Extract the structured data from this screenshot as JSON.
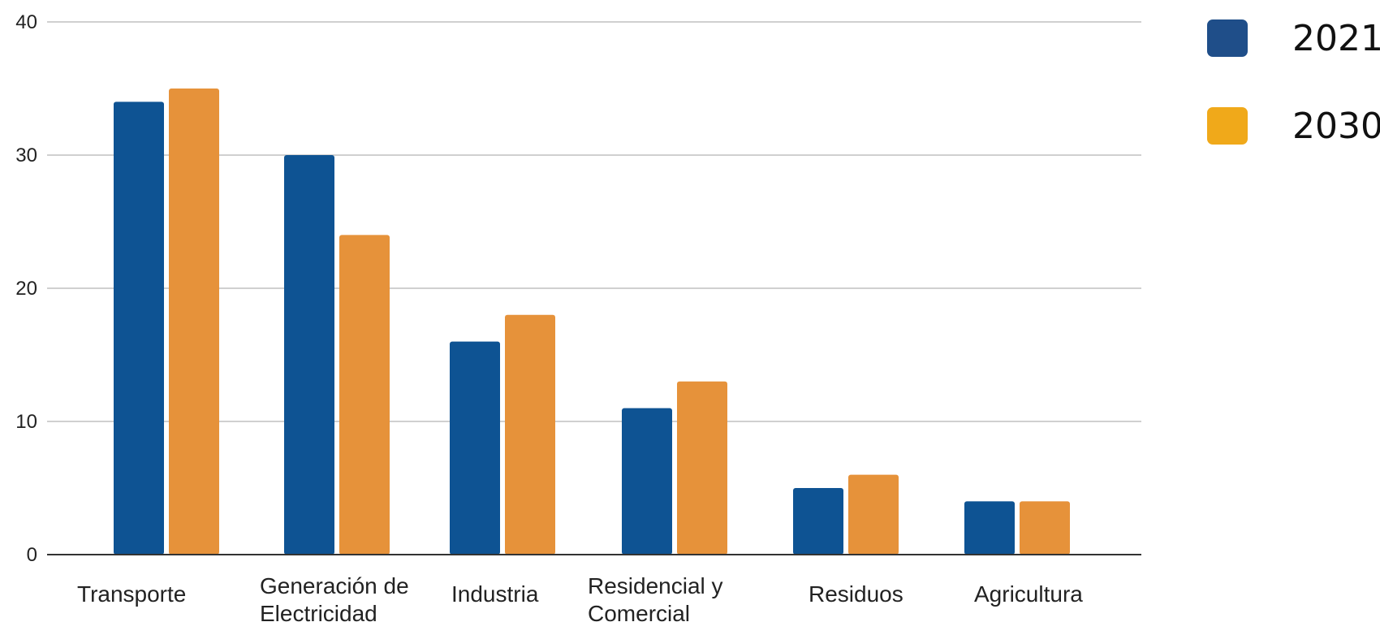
{
  "chart_data": {
    "type": "bar",
    "categories": [
      [
        "Transporte"
      ],
      [
        "Generación de",
        "Electricidad"
      ],
      [
        "Industria"
      ],
      [
        "Residencial y",
        "Comercial"
      ],
      [
        "Residuos"
      ],
      [
        "Agricultura"
      ]
    ],
    "series": [
      {
        "name": "2021",
        "values": [
          34,
          30,
          16,
          11,
          5,
          4
        ],
        "color": "#0e5393"
      },
      {
        "name": "2030",
        "values": [
          35,
          24,
          18,
          13,
          6,
          4
        ],
        "color": "#e6923a"
      }
    ],
    "legend": [
      {
        "label": "2021",
        "color": "#1f4e89"
      },
      {
        "label": "2030",
        "color": "#f0a91a"
      }
    ],
    "legend_position": "top-right",
    "yticks": [
      0,
      10,
      20,
      30,
      40
    ],
    "ylim": [
      0,
      40
    ],
    "grid": true,
    "title": "",
    "xlabel": "",
    "ylabel": ""
  }
}
